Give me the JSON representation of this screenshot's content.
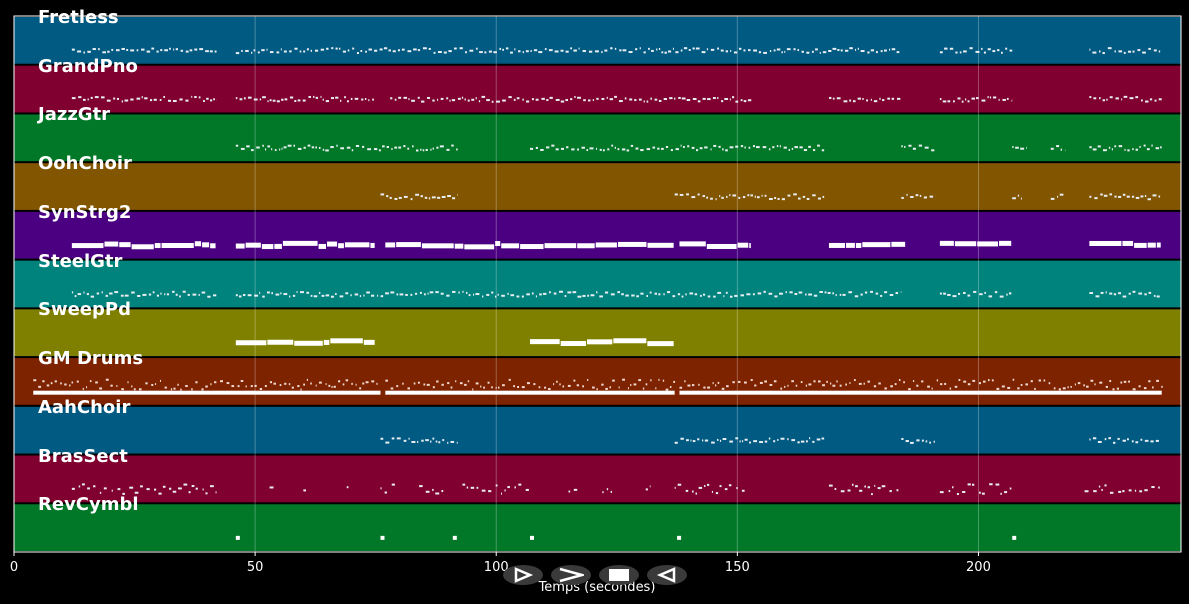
{
  "chart_data": {
    "type": "piano-roll",
    "xlabel": "Temps (secondes)",
    "xlim": [
      0,
      242
    ],
    "xticks": [
      0,
      50,
      100,
      150,
      200
    ],
    "grid": true,
    "tracks": [
      {
        "name": "Fretless",
        "color": "#005a82",
        "style": "mid",
        "segments": [
          [
            12,
            42
          ],
          [
            46,
            184
          ],
          [
            192,
            207
          ],
          [
            223,
            238
          ]
        ]
      },
      {
        "name": "GrandPno",
        "color": "#800030",
        "style": "mid",
        "segments": [
          [
            12,
            42
          ],
          [
            46,
            75
          ],
          [
            78,
            153
          ],
          [
            169,
            184
          ],
          [
            192,
            207
          ],
          [
            223,
            238
          ]
        ]
      },
      {
        "name": "JazzGtr",
        "color": "#007828",
        "style": "mid",
        "segments": [
          [
            46,
            92
          ],
          [
            107,
            168
          ],
          [
            184,
            191
          ],
          [
            207,
            210
          ],
          [
            215,
            218
          ],
          [
            223,
            238
          ]
        ]
      },
      {
        "name": "OohChoir",
        "color": "#825500",
        "style": "mid",
        "segments": [
          [
            76,
            92
          ],
          [
            137,
            168
          ],
          [
            184,
            191
          ],
          [
            207,
            209
          ],
          [
            215,
            218
          ],
          [
            223,
            238
          ]
        ]
      },
      {
        "name": "SynStrg2",
        "color": "#4b0082",
        "style": "thick",
        "segments": [
          [
            12,
            42
          ],
          [
            46,
            75
          ],
          [
            77,
            137
          ],
          [
            138,
            153
          ],
          [
            169,
            185
          ],
          [
            192,
            207
          ],
          [
            223,
            238
          ]
        ]
      },
      {
        "name": "SteelGtr",
        "color": "#00827d",
        "style": "mid",
        "segments": [
          [
            12,
            42
          ],
          [
            46,
            184
          ],
          [
            192,
            207
          ],
          [
            223,
            238
          ]
        ]
      },
      {
        "name": "SweepPd",
        "color": "#808000",
        "style": "thick",
        "segments": [
          [
            46,
            75
          ],
          [
            107,
            137
          ]
        ]
      },
      {
        "name": "GM Drums",
        "color": "#7d2300",
        "style": "dense",
        "segments": [
          [
            4,
            76
          ],
          [
            77,
            137
          ],
          [
            138,
            238
          ]
        ]
      },
      {
        "name": "AahChoir",
        "color": "#005a82",
        "style": "mid",
        "segments": [
          [
            76,
            92
          ],
          [
            137,
            168
          ],
          [
            184,
            191
          ],
          [
            223,
            238
          ]
        ]
      },
      {
        "name": "BrasSect",
        "color": "#800030",
        "style": "sparse",
        "segments": [
          [
            12,
            42
          ],
          [
            53,
            54
          ],
          [
            60,
            61
          ],
          [
            69,
            70
          ],
          [
            76,
            79
          ],
          [
            84,
            89
          ],
          [
            93,
            107
          ],
          [
            115,
            117
          ],
          [
            122,
            124
          ],
          [
            131,
            132
          ],
          [
            137,
            152
          ],
          [
            169,
            184
          ],
          [
            192,
            207
          ],
          [
            222,
            238
          ]
        ]
      },
      {
        "name": "RevCymbl",
        "color": "#007828",
        "style": "dots",
        "segments": [
          [
            46,
            46.5
          ],
          [
            76,
            76.5
          ],
          [
            91,
            91.6
          ],
          [
            107,
            107.6
          ],
          [
            137.5,
            138
          ],
          [
            207,
            207.5
          ]
        ]
      }
    ]
  },
  "transport": {
    "play_label": "play",
    "fast_forward_label": "fast-forward",
    "stop_label": "stop",
    "rewind_label": "rewind"
  }
}
